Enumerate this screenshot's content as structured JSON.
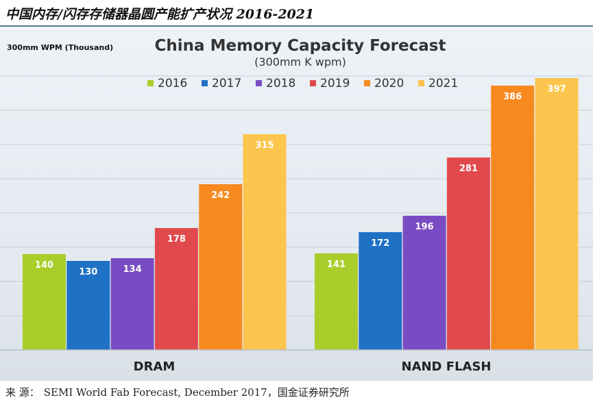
{
  "page_title": "中国内存/闪存存储器晶圆产能扩产状况 2016-2021",
  "source": {
    "label": "来 源：",
    "text": "SEMI World Fab Forecast, December 2017，国金证券研究所"
  },
  "chart_data": {
    "type": "bar",
    "title": "China Memory Capacity Forecast",
    "subtitle": "(300mm K wpm)",
    "ylabel": "300mm WPM (Thousand)",
    "xlabel": "",
    "categories": [
      "DRAM",
      "NAND FLASH"
    ],
    "series": [
      {
        "name": "2016",
        "color": "#a9cd2a",
        "values": [
          140,
          141
        ]
      },
      {
        "name": "2017",
        "color": "#1f71c6",
        "values": [
          130,
          172
        ]
      },
      {
        "name": "2018",
        "color": "#7a4cc3",
        "values": [
          134,
          196
        ]
      },
      {
        "name": "2019",
        "color": "#e04a4d",
        "values": [
          178,
          281
        ]
      },
      {
        "name": "2020",
        "color": "#f7891f",
        "values": [
          242,
          386
        ]
      },
      {
        "name": "2021",
        "color": "#fcc54d",
        "values": [
          315,
          397
        ]
      }
    ],
    "ylim": [
      0,
      400
    ],
    "gridlines": true,
    "legend": "top-center"
  }
}
